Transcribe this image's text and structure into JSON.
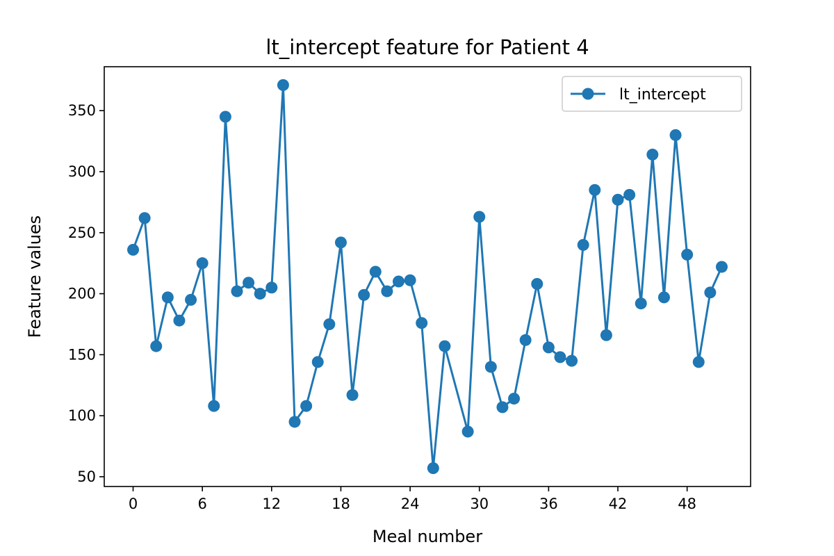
{
  "chart_data": {
    "type": "line",
    "title": "lt_intercept feature for Patient 4",
    "xlabel": "Meal number",
    "ylabel": "Feature values",
    "xlim": [
      -2.5,
      53.5
    ],
    "ylim": [
      42,
      386
    ],
    "xticks": [
      0,
      6,
      12,
      18,
      24,
      30,
      36,
      42,
      48
    ],
    "yticks": [
      50,
      100,
      150,
      200,
      250,
      300,
      350
    ],
    "grid": false,
    "legend_position": "top-right",
    "series": [
      {
        "name": "lt_intercept",
        "color": "#1f77b4",
        "marker": "circle",
        "x": [
          0,
          1,
          2,
          3,
          4,
          5,
          6,
          7,
          8,
          9,
          10,
          11,
          12,
          13,
          14,
          15,
          16,
          17,
          18,
          19,
          20,
          21,
          22,
          23,
          24,
          25,
          26,
          27,
          29,
          30,
          31,
          32,
          33,
          34,
          35,
          36,
          37,
          38,
          39,
          40,
          41,
          42,
          43,
          44,
          45,
          46,
          47,
          48,
          49,
          50,
          51
        ],
        "y": [
          236,
          262,
          157,
          197,
          178,
          195,
          225,
          108,
          345,
          202,
          209,
          200,
          205,
          371,
          95,
          108,
          144,
          175,
          242,
          117,
          199,
          218,
          202,
          210,
          211,
          176,
          57,
          157,
          87,
          263,
          140,
          107,
          114,
          162,
          208,
          156,
          148,
          145,
          240,
          285,
          166,
          277,
          281,
          192,
          314,
          197,
          330,
          232,
          144,
          201,
          222
        ]
      }
    ]
  }
}
